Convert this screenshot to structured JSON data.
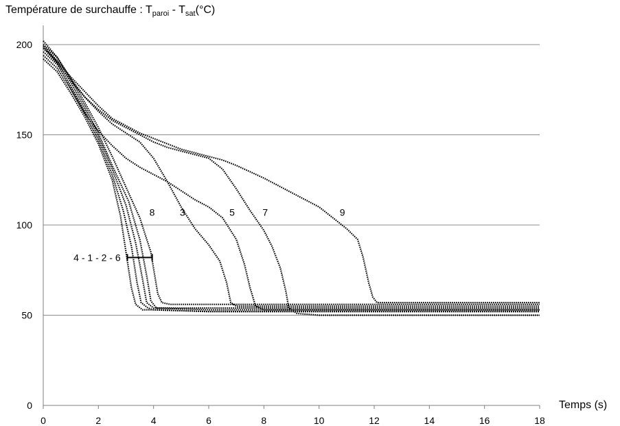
{
  "chart_data": {
    "type": "line",
    "title": {
      "prefix": "Température de surchauffe : T",
      "sub1": "paroi",
      "middle": " - T",
      "sub2": "sat",
      "suffix": "(°C)"
    },
    "xlabel": "Temps (s)",
    "xlim": [
      0,
      18
    ],
    "ylim": [
      0,
      200
    ],
    "x_ticks": [
      0,
      2,
      4,
      6,
      8,
      10,
      12,
      14,
      16,
      18
    ],
    "y_ticks": [
      0,
      50,
      100,
      150,
      200
    ],
    "grid": "horizontal",
    "series": [
      {
        "name": "4",
        "points": [
          [
            0,
            192
          ],
          [
            0.5,
            185
          ],
          [
            1,
            173
          ],
          [
            1.5,
            160
          ],
          [
            2,
            145
          ],
          [
            2.5,
            125
          ],
          [
            2.8,
            105
          ],
          [
            3.0,
            85
          ],
          [
            3.2,
            65
          ],
          [
            3.35,
            56
          ],
          [
            3.6,
            53
          ],
          [
            4,
            53
          ],
          [
            6,
            52
          ],
          [
            10,
            52
          ],
          [
            14,
            52
          ],
          [
            18,
            52
          ]
        ]
      },
      {
        "name": "1",
        "points": [
          [
            0,
            194
          ],
          [
            0.5,
            187
          ],
          [
            1,
            175
          ],
          [
            1.5,
            162
          ],
          [
            2,
            147
          ],
          [
            2.5,
            128
          ],
          [
            2.9,
            108
          ],
          [
            3.2,
            88
          ],
          [
            3.4,
            68
          ],
          [
            3.55,
            57
          ],
          [
            3.8,
            54
          ],
          [
            4,
            53
          ],
          [
            6,
            52
          ],
          [
            10,
            52
          ],
          [
            14,
            52
          ],
          [
            18,
            52
          ]
        ]
      },
      {
        "name": "2",
        "points": [
          [
            0,
            196
          ],
          [
            0.5,
            189
          ],
          [
            1,
            177
          ],
          [
            1.5,
            164
          ],
          [
            2,
            149
          ],
          [
            2.5,
            131
          ],
          [
            3.0,
            111
          ],
          [
            3.35,
            90
          ],
          [
            3.6,
            70
          ],
          [
            3.75,
            57
          ],
          [
            4,
            54
          ],
          [
            6,
            53
          ],
          [
            10,
            53
          ],
          [
            14,
            53
          ],
          [
            18,
            53
          ]
        ]
      },
      {
        "name": "6",
        "points": [
          [
            0,
            198
          ],
          [
            0.5,
            191
          ],
          [
            1,
            179
          ],
          [
            1.5,
            166
          ],
          [
            2,
            151
          ],
          [
            2.5,
            133
          ],
          [
            3.1,
            113
          ],
          [
            3.5,
            92
          ],
          [
            3.75,
            72
          ],
          [
            3.9,
            58
          ],
          [
            4.1,
            54
          ],
          [
            6,
            54
          ],
          [
            10,
            54
          ],
          [
            14,
            54
          ],
          [
            18,
            54
          ]
        ]
      },
      {
        "name": "8",
        "points": [
          [
            0,
            200
          ],
          [
            0.5,
            193
          ],
          [
            1,
            181
          ],
          [
            1.5,
            168
          ],
          [
            2,
            154
          ],
          [
            2.5,
            138
          ],
          [
            3,
            121
          ],
          [
            3.5,
            104
          ],
          [
            3.9,
            85
          ],
          [
            4.15,
            62
          ],
          [
            4.3,
            57
          ],
          [
            4.6,
            56
          ],
          [
            6,
            56
          ],
          [
            10,
            56
          ],
          [
            14,
            56
          ],
          [
            18,
            56
          ]
        ]
      },
      {
        "name": "3",
        "points": [
          [
            0,
            202
          ],
          [
            0.5,
            193
          ],
          [
            1,
            181
          ],
          [
            1.5,
            171
          ],
          [
            2,
            163
          ],
          [
            2.5,
            156
          ],
          [
            3,
            151
          ],
          [
            3.5,
            146
          ],
          [
            4,
            137
          ],
          [
            4.5,
            124
          ],
          [
            5,
            110
          ],
          [
            5.5,
            98
          ],
          [
            6,
            89
          ],
          [
            6.4,
            80
          ],
          [
            6.65,
            68
          ],
          [
            6.8,
            57
          ],
          [
            7,
            55
          ],
          [
            8,
            55
          ],
          [
            10,
            55
          ],
          [
            14,
            55
          ],
          [
            18,
            55
          ]
        ]
      },
      {
        "name": "5",
        "points": [
          [
            0,
            199
          ],
          [
            0.5,
            190
          ],
          [
            1,
            176
          ],
          [
            1.5,
            162
          ],
          [
            2,
            152
          ],
          [
            2.5,
            144
          ],
          [
            3,
            137
          ],
          [
            3.5,
            132
          ],
          [
            4,
            128
          ],
          [
            4.5,
            124
          ],
          [
            5,
            119
          ],
          [
            5.5,
            114
          ],
          [
            6,
            110
          ],
          [
            6.5,
            104
          ],
          [
            7,
            92
          ],
          [
            7.3,
            78
          ],
          [
            7.5,
            65
          ],
          [
            7.7,
            55
          ],
          [
            8,
            53
          ],
          [
            10,
            53
          ],
          [
            14,
            53
          ],
          [
            18,
            53
          ]
        ]
      },
      {
        "name": "7",
        "points": [
          [
            0,
            198
          ],
          [
            0.5,
            190
          ],
          [
            1,
            180
          ],
          [
            1.5,
            171
          ],
          [
            2,
            164
          ],
          [
            2.5,
            158
          ],
          [
            3,
            154
          ],
          [
            3.5,
            150
          ],
          [
            4,
            146
          ],
          [
            4.5,
            143
          ],
          [
            5,
            141
          ],
          [
            5.5,
            139
          ],
          [
            6,
            137
          ],
          [
            6.5,
            131
          ],
          [
            7,
            120
          ],
          [
            7.5,
            108
          ],
          [
            8,
            97
          ],
          [
            8.3,
            88
          ],
          [
            8.6,
            76
          ],
          [
            8.8,
            63
          ],
          [
            8.9,
            54
          ],
          [
            9.2,
            51
          ],
          [
            10,
            50
          ],
          [
            12,
            50
          ],
          [
            14,
            50
          ],
          [
            18,
            50
          ]
        ]
      },
      {
        "name": "9",
        "points": [
          [
            0,
            200
          ],
          [
            0.5,
            191
          ],
          [
            1,
            182
          ],
          [
            1.5,
            174
          ],
          [
            2,
            166
          ],
          [
            2.5,
            159
          ],
          [
            3,
            155
          ],
          [
            3.5,
            151
          ],
          [
            4,
            148
          ],
          [
            4.5,
            145
          ],
          [
            5,
            142
          ],
          [
            5.5,
            140
          ],
          [
            6,
            138
          ],
          [
            6.5,
            136
          ],
          [
            7,
            133
          ],
          [
            8,
            126
          ],
          [
            9,
            118
          ],
          [
            10,
            110
          ],
          [
            10.5,
            104
          ],
          [
            11,
            98
          ],
          [
            11.4,
            92
          ],
          [
            11.6,
            82
          ],
          [
            11.8,
            68
          ],
          [
            11.95,
            60
          ],
          [
            12.1,
            57
          ],
          [
            12.5,
            57
          ],
          [
            14,
            57
          ],
          [
            16,
            57
          ],
          [
            18,
            57
          ]
        ]
      }
    ],
    "annotations": [
      {
        "text": "4 - 1 - 2 - 6",
        "x": 1.1,
        "y": 82
      },
      {
        "text": "8",
        "x": 3.85,
        "y": 107
      },
      {
        "text": "3",
        "x": 4.95,
        "y": 107
      },
      {
        "text": "5",
        "x": 6.75,
        "y": 107
      },
      {
        "text": "7",
        "x": 7.95,
        "y": 107
      },
      {
        "text": "9",
        "x": 10.75,
        "y": 107
      }
    ],
    "bracket": {
      "x_from": 3.05,
      "x_to": 3.95,
      "y": 82
    }
  }
}
